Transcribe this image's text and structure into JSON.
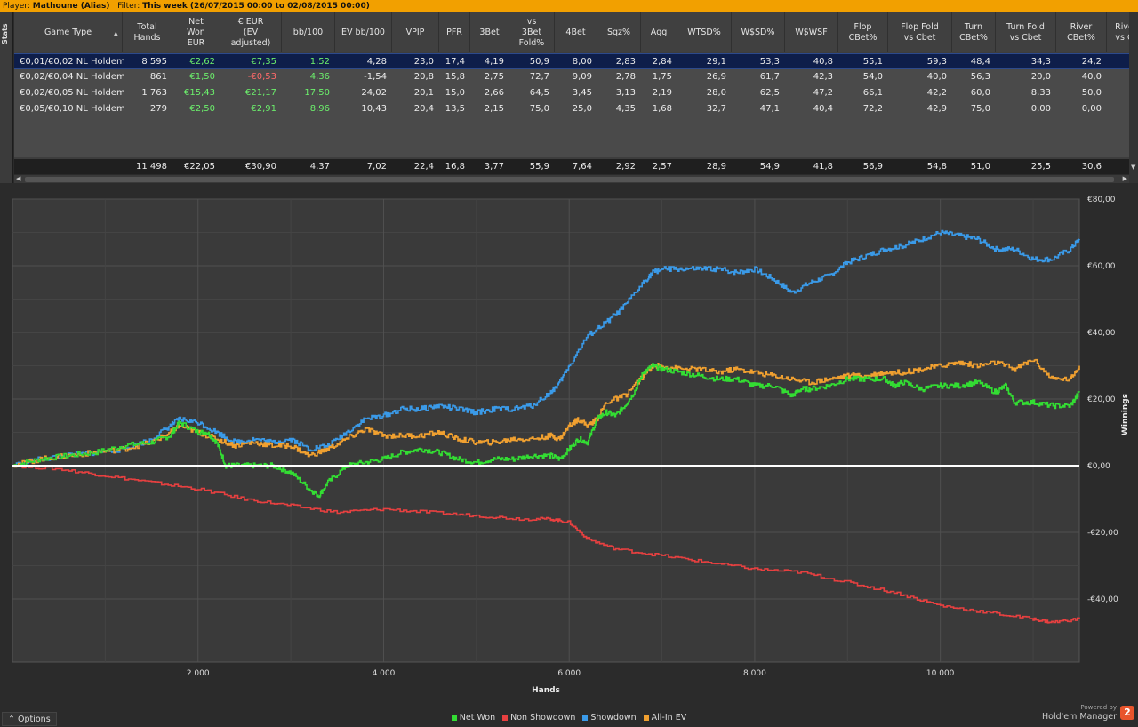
{
  "title_bar": {
    "player_label": "Player:",
    "player": "Mathoune (Alias)",
    "filter_label": "Filter:",
    "filter": "This week (26/07/2015 00:00 to 02/08/2015 00:00)"
  },
  "stats_tab": {
    "label": "Stats"
  },
  "table": {
    "columns": [
      "Game Type",
      "Total\nHands",
      "Net\nWon\nEUR",
      "€ EUR\n(EV\nadjusted)",
      "bb/100",
      "EV bb/100",
      "VPIP",
      "PFR",
      "3Bet",
      "vs\n3Bet\nFold%",
      "4Bet",
      "Sqz%",
      "Agg",
      "WTSD%",
      "W$SD%",
      "W$WSF",
      "Flop\nCBet%",
      "Flop Fold\nvs Cbet",
      "Turn\nCBet%",
      "Turn Fold\nvs Cbet",
      "River\nCBet%",
      "Rive\nvs C"
    ],
    "rows": [
      [
        "€0,01/€0,02 NL Holdem",
        "8 595",
        "€2,62",
        "€7,35",
        "1,52",
        "4,28",
        "23,0",
        "17,4",
        "4,19",
        "50,9",
        "8,00",
        "2,83",
        "2,84",
        "29,1",
        "53,3",
        "40,8",
        "55,1",
        "59,3",
        "48,4",
        "34,3",
        "24,2",
        ""
      ],
      [
        "€0,02/€0,04 NL Holdem",
        "861",
        "€1,50",
        "-€0,53",
        "4,36",
        "-1,54",
        "20,8",
        "15,8",
        "2,75",
        "72,7",
        "9,09",
        "2,78",
        "1,75",
        "26,9",
        "61,7",
        "42,3",
        "54,0",
        "40,0",
        "56,3",
        "20,0",
        "40,0",
        ""
      ],
      [
        "€0,02/€0,05 NL Holdem",
        "1 763",
        "€15,43",
        "€21,17",
        "17,50",
        "24,02",
        "20,1",
        "15,0",
        "2,66",
        "64,5",
        "3,45",
        "3,13",
        "2,19",
        "28,0",
        "62,5",
        "47,2",
        "66,1",
        "42,2",
        "60,0",
        "8,33",
        "50,0",
        ""
      ],
      [
        "€0,05/€0,10 NL Holdem",
        "279",
        "€2,50",
        "€2,91",
        "8,96",
        "10,43",
        "20,4",
        "13,5",
        "2,15",
        "75,0",
        "25,0",
        "4,35",
        "1,68",
        "32,7",
        "47,1",
        "40,4",
        "72,2",
        "42,9",
        "75,0",
        "0,00",
        "0,00",
        ""
      ]
    ],
    "totals": [
      "",
      "11 498",
      "€22,05",
      "€30,90",
      "4,37",
      "7,02",
      "22,4",
      "16,8",
      "3,77",
      "55,9",
      "7,64",
      "2,92",
      "2,57",
      "28,9",
      "54,9",
      "41,8",
      "56,9",
      "54,8",
      "51,0",
      "25,5",
      "30,6",
      ""
    ]
  },
  "chart_data": {
    "type": "line",
    "xlabel": "Hands",
    "ylabel": "Winnings",
    "xlim": [
      0,
      11498
    ],
    "ylim": [
      -60,
      80
    ],
    "x_ticks": [
      2000,
      4000,
      6000,
      8000,
      10000
    ],
    "x_tick_labels": [
      "2 000",
      "4 000",
      "6 000",
      "8 000",
      "10 000"
    ],
    "y_ticks": [
      80,
      60,
      40,
      20,
      0,
      -20,
      -40
    ],
    "y_tick_labels": [
      "€80,00",
      "€60,00",
      "€40,00",
      "€20,00",
      "€0,00",
      "-€20,00",
      "-€40,00"
    ],
    "grid": true,
    "legend_position": "bottom-center",
    "series": [
      {
        "name": "Net Won",
        "color": "#33dd33",
        "x": [
          0,
          300,
          600,
          900,
          1200,
          1500,
          1700,
          1800,
          2000,
          2100,
          2200,
          2300,
          2400,
          2600,
          2800,
          3000,
          3200,
          3300,
          3400,
          3600,
          3800,
          4000,
          4200,
          4400,
          4600,
          4800,
          5000,
          5200,
          5400,
          5600,
          5800,
          5900,
          6000,
          6100,
          6200,
          6300,
          6400,
          6500,
          6600,
          6700,
          6800,
          6900,
          7000,
          7200,
          7400,
          7600,
          7800,
          8000,
          8200,
          8400,
          8500,
          8600,
          8800,
          9000,
          9200,
          9400,
          9500,
          9600,
          9800,
          10000,
          10200,
          10400,
          10600,
          10700,
          10800,
          11000,
          11200,
          11400,
          11498
        ],
        "values": [
          0,
          2,
          3,
          4,
          6,
          7,
          9,
          13,
          10,
          10,
          7,
          0,
          0,
          0,
          0,
          -2,
          -7,
          -9,
          -5,
          0,
          1,
          2,
          4,
          5,
          4,
          2,
          1,
          2,
          2,
          3,
          3,
          2,
          5,
          8,
          7,
          14,
          16,
          15,
          18,
          22,
          28,
          30,
          29,
          28,
          27,
          26,
          26,
          24,
          24,
          21,
          23,
          23,
          24,
          26,
          26,
          26,
          24,
          25,
          23,
          24,
          24,
          25,
          22,
          24,
          19,
          19,
          18,
          18,
          22
        ]
      },
      {
        "name": "Non Showdown",
        "color": "#e84040",
        "x": [
          0,
          500,
          1000,
          1500,
          2000,
          2500,
          3000,
          3500,
          4000,
          4500,
          5000,
          5500,
          5800,
          6000,
          6200,
          6500,
          7000,
          7500,
          8000,
          8500,
          9000,
          9500,
          10000,
          10500,
          11000,
          11200,
          11498
        ],
        "values": [
          0,
          -1,
          -3,
          -5,
          -7,
          -10,
          -12,
          -14,
          -13,
          -14,
          -15,
          -16,
          -16,
          -17,
          -22,
          -25,
          -27,
          -29,
          -31,
          -32,
          -35,
          -38,
          -42,
          -44,
          -46,
          -47,
          -46
        ]
      },
      {
        "name": "Showdown",
        "color": "#3a9ae8",
        "x": [
          0,
          300,
          600,
          900,
          1200,
          1500,
          1700,
          1800,
          2000,
          2200,
          2400,
          2600,
          2800,
          3000,
          3200,
          3400,
          3600,
          3800,
          4000,
          4200,
          4400,
          4600,
          4800,
          5000,
          5200,
          5400,
          5600,
          5800,
          5900,
          6000,
          6200,
          6400,
          6600,
          6800,
          6900,
          7000,
          7200,
          7400,
          7600,
          7800,
          8000,
          8200,
          8400,
          8600,
          8800,
          9000,
          9200,
          9400,
          9600,
          9800,
          10000,
          10200,
          10400,
          10600,
          10800,
          11000,
          11200,
          11400,
          11498
        ],
        "values": [
          0,
          2,
          3,
          4,
          5,
          8,
          12,
          14,
          13,
          10,
          7,
          8,
          7,
          8,
          5,
          6,
          10,
          14,
          15,
          17,
          17,
          18,
          17,
          16,
          17,
          17,
          18,
          22,
          25,
          30,
          39,
          43,
          48,
          55,
          58,
          59,
          59,
          59,
          59,
          58,
          59,
          56,
          52,
          55,
          57,
          61,
          63,
          65,
          66,
          68,
          70,
          69,
          68,
          65,
          65,
          62,
          62,
          65,
          68
        ]
      },
      {
        "name": "All-In EV",
        "color": "#f0a030",
        "x": [
          0,
          300,
          600,
          900,
          1200,
          1500,
          1700,
          1800,
          2000,
          2200,
          2400,
          2600,
          2800,
          3000,
          3200,
          3400,
          3600,
          3800,
          4000,
          4200,
          4400,
          4600,
          4800,
          5000,
          5200,
          5400,
          5600,
          5800,
          5900,
          6000,
          6100,
          6200,
          6300,
          6400,
          6600,
          6800,
          6900,
          7000,
          7200,
          7400,
          7600,
          7800,
          8000,
          8200,
          8400,
          8600,
          8800,
          9000,
          9200,
          9400,
          9600,
          9800,
          10000,
          10200,
          10400,
          10600,
          10800,
          11000,
          11200,
          11400,
          11498
        ],
        "values": [
          0,
          2,
          3,
          4,
          5,
          7,
          10,
          12,
          10,
          8,
          6,
          7,
          6,
          6,
          3,
          5,
          8,
          11,
          9,
          9,
          9,
          10,
          8,
          7,
          7,
          8,
          8,
          9,
          8,
          12,
          14,
          12,
          14,
          19,
          21,
          27,
          30,
          30,
          29,
          29,
          28,
          29,
          28,
          27,
          26,
          25,
          26,
          27,
          27,
          28,
          28,
          29,
          30,
          31,
          30,
          31,
          29,
          32,
          26,
          26,
          30
        ]
      }
    ]
  },
  "bottom": {
    "options_label": "Options",
    "branding_top": "Powered by",
    "branding_app": "Hold'em Manager",
    "branding_badge": "2"
  }
}
